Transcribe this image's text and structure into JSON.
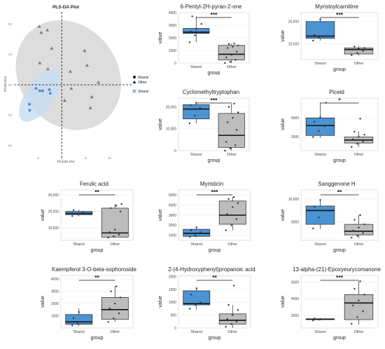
{
  "pls": {
    "title": "PLS-DA Plot",
    "xlabel": "PC1(45.4%)",
    "ylabel": "PC2(9.4%)",
    "legend": {
      "group1": "Shanxi",
      "group2": "Other",
      "fill_label": "Shanxi"
    },
    "xticks": [
      "-5",
      "0",
      "5",
      "10"
    ],
    "yticks": [
      "5.0",
      "2.5",
      "0.0",
      "-2.5",
      "-5.0"
    ],
    "colors": {
      "shanxi": "#4a90d9",
      "other": "#7a7a7a",
      "shanxi_ellipse": "#c9ddf2",
      "other_ellipse": "#d9d9d9"
    }
  },
  "chart_data": [
    {
      "type": "scatter",
      "title": "PLS-DA Plot",
      "xlabel": "PC1(45.4%)",
      "ylabel": "PC2(9.4%)",
      "xlim": [
        -10,
        12
      ],
      "ylim": [
        -6,
        6
      ],
      "xticks": [
        -5,
        0,
        5,
        10
      ],
      "yticks": [
        5.0,
        2.5,
        0.0,
        -2.5,
        -5.0
      ],
      "grid": false,
      "legend_position": "right",
      "series": [
        {
          "name": "Shanxi",
          "marker": "circle",
          "color": "#4a90d9",
          "points": [
            [
              -5.4,
              -0.3
            ],
            [
              -4.6,
              -0.5
            ],
            [
              -4.0,
              -0.5
            ],
            [
              -2.6,
              -0.4
            ],
            [
              -2.4,
              -0.7
            ],
            [
              -6.8,
              -1.6
            ],
            [
              -6.7,
              -2.1
            ]
          ]
        },
        {
          "name": "Other",
          "marker": "triangle",
          "color": "#7a7a7a",
          "points": [
            [
              -4.7,
              4.8
            ],
            [
              -4.3,
              4.3
            ],
            [
              -3.0,
              4.5
            ],
            [
              -2.1,
              3.0
            ],
            [
              -2.9,
              1.3
            ],
            [
              -4.6,
              1.8
            ],
            [
              4.8,
              2.8
            ],
            [
              5.3,
              1.6
            ],
            [
              1.8,
              1.1
            ],
            [
              2.0,
              -0.3
            ],
            [
              7.7,
              0.2
            ],
            [
              6.3,
              -1.0
            ],
            [
              0.6,
              -1.3
            ],
            [
              6.0,
              -1.9
            ]
          ]
        }
      ]
    },
    {
      "type": "box",
      "title": "6-Pentyl-2H-pyran-2-one",
      "categories": [
        "Shanxi",
        "Other"
      ],
      "xlabel": "group",
      "ylabel": "value",
      "ylim": [
        0,
        4000
      ],
      "yticks": [
        0,
        1000,
        2000,
        3000,
        4000
      ],
      "yticklabels": [
        "0",
        "1000",
        "2000",
        "3000",
        "4000"
      ],
      "significance": "***",
      "boxes": [
        {
          "group": "Shanxi",
          "fill": "#4b93d3",
          "min": 1650,
          "q1": 2350,
          "median": 2450,
          "q3": 2750,
          "max": 3700,
          "points": [
            1650,
            2200,
            2400,
            2500,
            2700,
            3100,
            3700
          ]
        },
        {
          "group": "Other",
          "fill": "#bdbdbd",
          "min": 0,
          "q1": 250,
          "median": 700,
          "q3": 1400,
          "max": 1550,
          "points": [
            0,
            100,
            250,
            450,
            650,
            900,
            1200,
            1300,
            1400,
            1500,
            1550
          ]
        }
      ]
    },
    {
      "type": "box",
      "title": "Myristoylcarnitine",
      "categories": [
        "Shanxi",
        "Other"
      ],
      "xlabel": "group",
      "ylabel": "value",
      "ylim": [
        3000,
        24000
      ],
      "yticks": [
        10000,
        20000
      ],
      "yticklabels": [
        "10,000",
        "20,000"
      ],
      "significance": "***",
      "boxes": [
        {
          "group": "Shanxi",
          "fill": "#4b93d3",
          "min": 11500,
          "q1": 12500,
          "median": 13500,
          "q3": 20000,
          "max": 21500,
          "points": [
            11500,
            12800,
            13500,
            14000,
            21000
          ]
        },
        {
          "group": "Other",
          "fill": "#bdbdbd",
          "min": 4800,
          "q1": 5500,
          "median": 7500,
          "q3": 8200,
          "max": 9000,
          "points": [
            5000,
            6000,
            6800,
            7400,
            7800,
            8200,
            8800
          ]
        }
      ]
    },
    {
      "type": "box",
      "title": "Cyclomethyltryptophan",
      "categories": [
        "Shanxi",
        "Other"
      ],
      "xlabel": "group",
      "ylabel": "value",
      "ylim": [
        0,
        24000
      ],
      "yticks": [
        0,
        10000,
        20000
      ],
      "yticklabels": [
        "0",
        "10,000",
        "20,000"
      ],
      "significance": "***",
      "boxes": [
        {
          "group": "Shanxi",
          "fill": "#4b93d3",
          "min": 12500,
          "q1": 14500,
          "median": 19000,
          "q3": 21000,
          "max": 22000,
          "points": [
            12500,
            16000,
            19500,
            20800,
            21800
          ]
        },
        {
          "group": "Other",
          "fill": "#bdbdbd",
          "min": 0,
          "q1": 1500,
          "median": 7000,
          "q3": 17000,
          "max": 21500,
          "points": [
            0,
            1000,
            2500,
            4000,
            7000,
            9500,
            13000,
            15000,
            17500,
            20000,
            21500
          ]
        }
      ]
    },
    {
      "type": "box",
      "title": "Piceid",
      "categories": [
        "Shanxi",
        "Other"
      ],
      "xlabel": "group",
      "ylabel": "value",
      "ylim": [
        700,
        7600
      ],
      "yticks": [
        2500,
        5000
      ],
      "yticklabels": [
        "2500",
        "5000"
      ],
      "significance": "*",
      "boxes": [
        {
          "group": "Shanxi",
          "fill": "#4b93d3",
          "min": 2400,
          "q1": 2700,
          "median": 4000,
          "q3": 5000,
          "max": 7000,
          "points": [
            2500,
            3300,
            3900,
            4500,
            5100,
            7000
          ]
        },
        {
          "group": "Other",
          "fill": "#bdbdbd",
          "min": 1200,
          "q1": 1700,
          "median": 2100,
          "q3": 2500,
          "max": 3200,
          "points": [
            1200,
            1600,
            1900,
            2200,
            2500,
            2800,
            3200,
            4900
          ]
        }
      ]
    },
    {
      "type": "box",
      "title": "Ferulic acid",
      "categories": [
        "Shanxi",
        "Other"
      ],
      "xlabel": "group",
      "ylabel": "value",
      "ylim": [
        2500,
        33000
      ],
      "yticks": [
        10000,
        20000,
        30000
      ],
      "yticklabels": [
        "10,000",
        "20,000",
        "30,000"
      ],
      "significance": "**",
      "boxes": [
        {
          "group": "Shanxi",
          "fill": "#4b93d3",
          "min": 17000,
          "q1": 18000,
          "median": 18800,
          "q3": 20000,
          "max": 21000,
          "points": [
            17200,
            18500,
            19500,
            20800
          ]
        },
        {
          "group": "Other",
          "fill": "#bdbdbd",
          "min": 4000,
          "q1": 4500,
          "median": 7000,
          "q3": 22000,
          "max": 24500,
          "points": [
            4200,
            5000,
            6000,
            7500,
            9000,
            20000,
            22000,
            23500,
            24500
          ]
        }
      ]
    },
    {
      "type": "box",
      "title": "Myristicin",
      "categories": [
        "Shanxi",
        "Other"
      ],
      "xlabel": "group",
      "ylabel": "value",
      "ylim": [
        500,
        5500
      ],
      "yticks": [
        1000,
        2000,
        3000,
        4000,
        5000
      ],
      "yticklabels": [
        "1000",
        "2000",
        "3000",
        "4000",
        "5000"
      ],
      "significance": "***",
      "boxes": [
        {
          "group": "Shanxi",
          "fill": "#4b93d3",
          "min": 800,
          "q1": 900,
          "median": 1200,
          "q3": 1600,
          "max": 1800,
          "points": [
            850,
            1000,
            1300,
            1500,
            1800
          ]
        },
        {
          "group": "Other",
          "fill": "#bdbdbd",
          "min": 1500,
          "q1": 2100,
          "median": 3000,
          "q3": 4400,
          "max": 4800,
          "points": [
            1500,
            2000,
            2600,
            3100,
            3800,
            4200,
            4600,
            4800
          ]
        }
      ]
    },
    {
      "type": "box",
      "title": "Sanggenone H",
      "categories": [
        "Shanxi",
        "Other"
      ],
      "xlabel": "group",
      "ylabel": "value",
      "ylim": [
        1000,
        12000
      ],
      "yticks": [
        5000,
        10000
      ],
      "yticklabels": [
        "5000",
        "10,000"
      ],
      "significance": "**",
      "boxes": [
        {
          "group": "Shanxi",
          "fill": "#4b93d3",
          "min": 3500,
          "q1": 4500,
          "median": 7500,
          "q3": 8500,
          "max": 10000,
          "points": [
            3600,
            6000,
            7500,
            8300,
            9800
          ]
        },
        {
          "group": "Other",
          "fill": "#bdbdbd",
          "min": 1500,
          "q1": 2200,
          "median": 3000,
          "q3": 4500,
          "max": 6500,
          "points": [
            1600,
            2000,
            2600,
            3100,
            3800,
            4500,
            5500,
            6500
          ]
        }
      ]
    },
    {
      "type": "box",
      "title": "Kaempferol 3-O-beta-sophoroside",
      "categories": [
        "Shanxi",
        "Other"
      ],
      "xlabel": "group",
      "ylabel": "value",
      "ylim": [
        0,
        4300
      ],
      "yticks": [
        1000,
        2000,
        3000,
        4000
      ],
      "yticklabels": [
        "1000",
        "2000",
        "3000",
        "4000"
      ],
      "significance": "**",
      "boxes": [
        {
          "group": "Shanxi",
          "fill": "#4b93d3",
          "min": 150,
          "q1": 300,
          "median": 500,
          "q3": 1100,
          "max": 1600,
          "points": [
            200,
            350,
            500,
            800,
            1300
          ]
        },
        {
          "group": "Other",
          "fill": "#bdbdbd",
          "min": 500,
          "q1": 700,
          "median": 1500,
          "q3": 2500,
          "max": 3400,
          "points": [
            500,
            800,
            1200,
            1600,
            2000,
            2500,
            3000,
            3400
          ]
        }
      ]
    },
    {
      "type": "box",
      "title": "2-(4-Hydroxyphenyl)propanoic acid",
      "categories": [
        "Shanxi",
        "Other"
      ],
      "xlabel": "group",
      "ylabel": "value",
      "ylim": [
        0,
        2050
      ],
      "yticks": [
        0,
        500,
        1000,
        1500,
        2000
      ],
      "yticklabels": [
        "0",
        "500",
        "1000",
        "1500",
        "2000"
      ],
      "significance": "**",
      "boxes": [
        {
          "group": "Shanxi",
          "fill": "#4b93d3",
          "min": 700,
          "q1": 900,
          "median": 950,
          "q3": 1450,
          "max": 1550,
          "points": [
            750,
            900,
            1000,
            1300,
            1550
          ]
        },
        {
          "group": "Other",
          "fill": "#bdbdbd",
          "min": 0,
          "q1": 150,
          "median": 300,
          "q3": 550,
          "max": 900,
          "points": [
            50,
            150,
            250,
            350,
            500,
            700,
            900,
            1650
          ]
        }
      ]
    },
    {
      "type": "box",
      "title": "13-alpha-(21)-Epoxyeurycomanone",
      "categories": [
        "Shanxi",
        "Other"
      ],
      "xlabel": "group",
      "ylabel": "value",
      "ylim": [
        500,
        6800
      ],
      "yticks": [
        2000,
        4000,
        6000
      ],
      "yticklabels": [
        "2000",
        "4000",
        "6000"
      ],
      "significance": "***",
      "boxes": [
        {
          "group": "Shanxi",
          "fill": "#4b93d3",
          "min": 1400,
          "q1": 1500,
          "median": 1550,
          "q3": 1600,
          "max": 1700,
          "points": [
            1400,
            1500,
            1550,
            1650
          ]
        },
        {
          "group": "Other",
          "fill": "#bdbdbd",
          "min": 900,
          "q1": 1500,
          "median": 3500,
          "q3": 4500,
          "max": 6100,
          "points": [
            1000,
            1800,
            2500,
            3200,
            3800,
            4500,
            5200,
            6100
          ]
        }
      ]
    }
  ]
}
